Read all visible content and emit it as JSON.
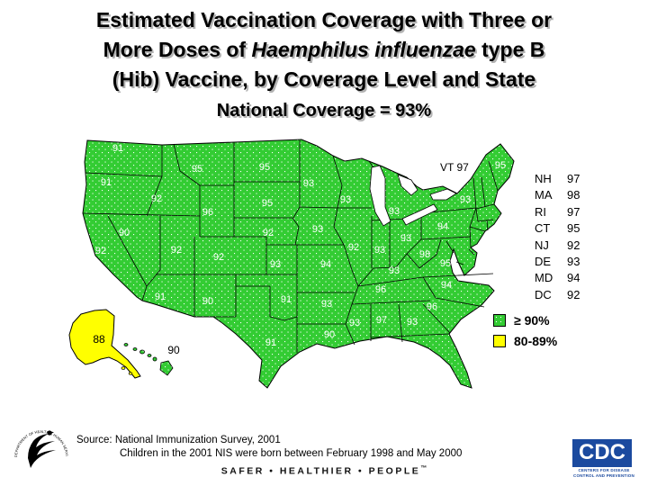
{
  "title": {
    "line1": "Estimated Vaccination Coverage with Three or",
    "line2_pre": "More Doses of ",
    "line2_italic": "Haemphilus influenzae",
    "line2_post": " type B",
    "line3": "(Hib) Vaccine, by Coverage Level and State",
    "line4": "National Coverage = 93%"
  },
  "chart_data": {
    "type": "heatmap",
    "subtype": "us-choropleth-map",
    "title": "Estimated Vaccination Coverage with Three or More Doses of Haemphilus influenzae type B (Hib) Vaccine, by Coverage Level and State",
    "national_coverage": 93,
    "unit": "%",
    "legend": [
      {
        "label": "≥  90%",
        "color": "#33CC33",
        "pattern": "white-dots"
      },
      {
        "label": "80-89%",
        "color": "#FFFF00",
        "pattern": "solid"
      }
    ],
    "states": [
      {
        "id": "WA",
        "value": 91
      },
      {
        "id": "OR",
        "value": 91
      },
      {
        "id": "CA",
        "value": 92
      },
      {
        "id": "NV",
        "value": 90
      },
      {
        "id": "ID",
        "value": 92
      },
      {
        "id": "UT",
        "value": 92
      },
      {
        "id": "AZ",
        "value": 91
      },
      {
        "id": "MT",
        "value": 95
      },
      {
        "id": "WY",
        "value": 96
      },
      {
        "id": "CO",
        "value": 92
      },
      {
        "id": "NM",
        "value": 90
      },
      {
        "id": "ND",
        "value": 95
      },
      {
        "id": "SD",
        "value": 95
      },
      {
        "id": "NE",
        "value": 92
      },
      {
        "id": "KS",
        "value": 93
      },
      {
        "id": "OK",
        "value": 91
      },
      {
        "id": "TX",
        "value": 91
      },
      {
        "id": "MN",
        "value": 93
      },
      {
        "id": "IA",
        "value": 93
      },
      {
        "id": "MO",
        "value": 94
      },
      {
        "id": "AR",
        "value": 93
      },
      {
        "id": "LA",
        "value": 90
      },
      {
        "id": "WI",
        "value": 93
      },
      {
        "id": "IL",
        "value": 92
      },
      {
        "id": "MI",
        "value": 93
      },
      {
        "id": "IN",
        "value": 93
      },
      {
        "id": "OH",
        "value": 93
      },
      {
        "id": "KY",
        "value": 93
      },
      {
        "id": "TN",
        "value": 96
      },
      {
        "id": "MS",
        "value": 93
      },
      {
        "id": "AL",
        "value": 97
      },
      {
        "id": "GA",
        "value": 93
      },
      {
        "id": "FL",
        "value": 93
      },
      {
        "id": "SC",
        "value": 96
      },
      {
        "id": "NC",
        "value": 94
      },
      {
        "id": "VA",
        "value": 95
      },
      {
        "id": "WV",
        "value": 98
      },
      {
        "id": "PA",
        "value": 94
      },
      {
        "id": "NY",
        "value": 93
      },
      {
        "id": "ME",
        "value": 95
      },
      {
        "id": "VT",
        "value": 97,
        "label": "VT 97"
      },
      {
        "id": "AK",
        "value": 88
      },
      {
        "id": "HI",
        "value": 90
      }
    ],
    "listed_states": [
      {
        "state": "NH",
        "value": 97
      },
      {
        "state": "MA",
        "value": 98
      },
      {
        "state": "RI",
        "value": 97
      },
      {
        "state": "CT",
        "value": 95
      },
      {
        "state": "NJ",
        "value": 92
      },
      {
        "state": "DE",
        "value": 93
      },
      {
        "state": "MD",
        "value": 94
      },
      {
        "state": "DC",
        "value": 92
      }
    ]
  },
  "source": {
    "line1": "Source:  National Immunization Survey, 2001",
    "line2": "Children in the 2001 NIS were born between February 1998 and May 2000"
  },
  "footer": {
    "tagline": "SAFER • HEALTHIER • PEOPLE",
    "trademark": "™"
  },
  "cdc_logo": {
    "abbr": "CDC",
    "caption": "CENTERS FOR DISEASE CONTROL AND PREVENTION"
  },
  "hhs_logo": {
    "seal_text": "DEPARTMENT OF HEALTH & HUMAN SERVICES • USA"
  },
  "colors": {
    "green": "#33CC33",
    "yellow": "#FFFF00",
    "cdc_blue": "#1B4A9F"
  }
}
